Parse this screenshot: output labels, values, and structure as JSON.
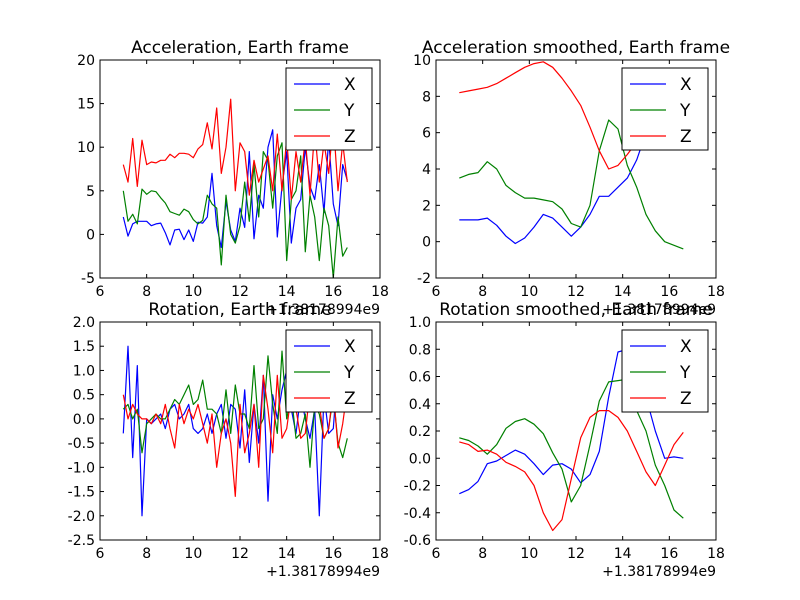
{
  "colors": {
    "X": "#0000ff",
    "Y": "#008000",
    "Z": "#ff0000"
  },
  "chart_data": [
    {
      "type": "line",
      "title": "Acceleration, Earth frame",
      "xlabel": "",
      "ylabel": "",
      "x_offset_label": "+1.38178994e9",
      "xlim": [
        6,
        18
      ],
      "ylim": [
        -5,
        20
      ],
      "xticks": [
        6,
        8,
        10,
        12,
        14,
        16,
        18
      ],
      "yticks": [
        -5,
        0,
        5,
        10,
        15,
        20
      ],
      "legend": "top-right",
      "grid": false,
      "x": [
        7.0,
        7.2,
        7.4,
        7.6,
        7.8,
        8.0,
        8.2,
        8.4,
        8.6,
        8.8,
        9.0,
        9.2,
        9.4,
        9.6,
        9.8,
        10.0,
        10.2,
        10.4,
        10.6,
        10.8,
        11.0,
        11.2,
        11.4,
        11.6,
        11.8,
        12.0,
        12.2,
        12.4,
        12.6,
        12.8,
        13.0,
        13.2,
        13.4,
        13.6,
        13.8,
        14.0,
        14.2,
        14.4,
        14.6,
        14.8,
        15.0,
        15.2,
        15.4,
        15.6,
        15.8,
        16.0,
        16.2,
        16.4,
        16.6
      ],
      "series": [
        {
          "name": "X",
          "values": [
            2.0,
            -0.2,
            1.2,
            1.5,
            1.5,
            1.5,
            1.0,
            1.2,
            1.3,
            0.2,
            -1.2,
            0.5,
            0.6,
            -0.6,
            0.5,
            -0.8,
            1.4,
            1.3,
            2.0,
            7.0,
            1.0,
            -1.5,
            3.8,
            0.5,
            -0.8,
            3.0,
            0.8,
            9.5,
            -0.5,
            4.5,
            3.0,
            10.0,
            12.0,
            -0.3,
            5.5,
            9.5,
            -1.0,
            3.0,
            4.0,
            10.0,
            5.5,
            4.0,
            8.0,
            2.5,
            11.0,
            3.5,
            1.0,
            8.0,
            6.2
          ]
        },
        {
          "name": "Y",
          "values": [
            5.0,
            1.5,
            2.3,
            1.2,
            5.2,
            4.6,
            5.0,
            4.9,
            4.2,
            3.6,
            2.6,
            2.4,
            2.2,
            2.9,
            2.6,
            1.7,
            1.2,
            1.6,
            4.5,
            3.5,
            3.0,
            -3.5,
            4.5,
            0.0,
            -1.0,
            1.0,
            6.0,
            1.5,
            8.0,
            2.0,
            9.5,
            8.5,
            3.0,
            9.0,
            10.5,
            -3.0,
            4.0,
            5.0,
            9.0,
            -2.0,
            4.5,
            2.0,
            -3.0,
            3.0,
            1.0,
            -5.0,
            2.0,
            -2.5,
            -1.5
          ]
        },
        {
          "name": "Z",
          "values": [
            8.0,
            6.0,
            11.0,
            5.5,
            10.8,
            8.0,
            8.3,
            8.2,
            8.5,
            8.5,
            9.2,
            8.8,
            9.3,
            9.3,
            9.2,
            8.8,
            9.8,
            10.3,
            12.8,
            9.8,
            14.5,
            7.0,
            10.0,
            15.5,
            5.0,
            10.5,
            9.5,
            4.5,
            8.5,
            6.0,
            7.5,
            9.0,
            5.0,
            11.5,
            5.0,
            11.0,
            4.0,
            9.5,
            6.0,
            11.0,
            4.5,
            12.0,
            6.0,
            10.5,
            7.0,
            13.0,
            5.0,
            10.5,
            6.0
          ]
        }
      ]
    },
    {
      "type": "line",
      "title": "Acceleration smoothed, Earth frame",
      "xlabel": "",
      "ylabel": "",
      "x_offset_label": "+1.38178994e9",
      "xlim": [
        6,
        18
      ],
      "ylim": [
        -2,
        10
      ],
      "xticks": [
        6,
        8,
        10,
        12,
        14,
        16,
        18
      ],
      "yticks": [
        -2,
        0,
        2,
        4,
        6,
        8,
        10
      ],
      "legend": "top-right",
      "grid": false,
      "x": [
        7.0,
        7.4,
        7.8,
        8.2,
        8.6,
        9.0,
        9.4,
        9.8,
        10.2,
        10.6,
        11.0,
        11.4,
        11.8,
        12.2,
        12.6,
        13.0,
        13.4,
        13.8,
        14.2,
        14.6,
        15.0,
        15.4,
        15.8,
        16.2,
        16.6
      ],
      "series": [
        {
          "name": "X",
          "values": [
            1.2,
            1.2,
            1.2,
            1.3,
            0.9,
            0.3,
            -0.1,
            0.2,
            0.8,
            1.5,
            1.3,
            0.8,
            0.3,
            0.8,
            1.5,
            2.5,
            2.5,
            3.0,
            3.5,
            4.5,
            6.0,
            7.5,
            8.0,
            8.5,
            8.8
          ]
        },
        {
          "name": "Y",
          "values": [
            3.5,
            3.7,
            3.8,
            4.4,
            4.0,
            3.1,
            2.7,
            2.4,
            2.4,
            2.3,
            2.2,
            1.8,
            1.0,
            0.8,
            2.0,
            5.0,
            6.7,
            6.2,
            4.2,
            3.0,
            1.5,
            0.6,
            0.0,
            -0.2,
            -0.4
          ]
        },
        {
          "name": "Z",
          "values": [
            8.2,
            8.3,
            8.4,
            8.5,
            8.7,
            9.0,
            9.3,
            9.6,
            9.8,
            9.9,
            9.6,
            9.0,
            8.3,
            7.5,
            6.3,
            5.0,
            4.0,
            4.2,
            4.8,
            5.5,
            6.0,
            6.5,
            6.8,
            7.0,
            7.0
          ]
        }
      ]
    },
    {
      "type": "line",
      "title": "Rotation, Earth frame",
      "xlabel": "",
      "ylabel": "",
      "x_offset_label": "+1.38178994e9",
      "xlim": [
        6,
        18
      ],
      "ylim": [
        -2.5,
        2.0
      ],
      "xticks": [
        6,
        8,
        10,
        12,
        14,
        16,
        18
      ],
      "yticks": [
        -2.5,
        -2.0,
        -1.5,
        -1.0,
        -0.5,
        0.0,
        0.5,
        1.0,
        1.5,
        2.0
      ],
      "legend": "top-right",
      "grid": false,
      "x": [
        7.0,
        7.2,
        7.4,
        7.6,
        7.8,
        8.0,
        8.2,
        8.4,
        8.6,
        8.8,
        9.0,
        9.2,
        9.4,
        9.6,
        9.8,
        10.0,
        10.2,
        10.4,
        10.6,
        10.8,
        11.0,
        11.2,
        11.4,
        11.6,
        11.8,
        12.0,
        12.2,
        12.4,
        12.6,
        12.8,
        13.0,
        13.2,
        13.4,
        13.6,
        13.8,
        14.0,
        14.2,
        14.4,
        14.6,
        14.8,
        15.0,
        15.2,
        15.4,
        15.6,
        15.8,
        16.0,
        16.2,
        16.4,
        16.6
      ],
      "series": [
        {
          "name": "X",
          "values": [
            -0.3,
            1.5,
            -0.8,
            1.1,
            -2.0,
            0.0,
            -0.1,
            0.0,
            0.1,
            -0.2,
            0.2,
            0.3,
            0.0,
            0.1,
            0.3,
            -0.2,
            -0.3,
            -0.2,
            0.1,
            -0.3,
            0.1,
            0.3,
            -0.4,
            0.3,
            0.2,
            -0.6,
            0.6,
            -0.9,
            0.3,
            -0.5,
            0.9,
            -1.7,
            0.5,
            0.0,
            0.6,
            1.0,
            0.2,
            -0.3,
            0.5,
            0.0,
            -0.4,
            0.2,
            -2.0,
            0.5,
            -0.3,
            -0.2,
            1.1,
            0.3,
            0.8
          ]
        },
        {
          "name": "Y",
          "values": [
            0.2,
            0.3,
            0.0,
            0.2,
            -0.7,
            -0.1,
            0.0,
            0.1,
            0.0,
            0.0,
            0.2,
            0.4,
            0.3,
            0.5,
            0.7,
            0.3,
            0.4,
            0.8,
            0.2,
            0.2,
            0.1,
            -0.3,
            0.6,
            -0.3,
            0.7,
            0.1,
            0.1,
            -0.2,
            1.1,
            -0.2,
            0.0,
            1.3,
            0.3,
            -0.3,
            1.4,
            0.0,
            0.5,
            -0.4,
            -0.3,
            0.1,
            -1.0,
            0.3,
            0.1,
            -0.4,
            -0.2,
            0.5,
            -0.5,
            -0.8,
            -0.4
          ]
        },
        {
          "name": "Z",
          "values": [
            0.5,
            0.0,
            0.3,
            0.1,
            0.0,
            0.0,
            -0.1,
            0.1,
            -0.1,
            0.3,
            -0.2,
            -0.6,
            0.3,
            -0.1,
            0.2,
            0.0,
            0.3,
            -0.1,
            -0.5,
            0.1,
            -1.0,
            -0.3,
            0.0,
            -0.5,
            -1.6,
            0.3,
            -0.7,
            -0.3,
            0.3,
            -1.0,
            0.9,
            0.2,
            -0.7,
            0.9,
            -0.4,
            -0.2,
            0.5,
            0.2,
            -0.4,
            -0.3,
            0.6,
            0.3,
            0.3,
            -0.4,
            -0.2,
            0.6,
            -0.6,
            -0.1,
            0.6
          ]
        }
      ]
    },
    {
      "type": "line",
      "title": "Rotation smoothed, Earth frame",
      "xlabel": "",
      "ylabel": "",
      "x_offset_label": "+1.38178994e9",
      "xlim": [
        6,
        18
      ],
      "ylim": [
        -0.6,
        1.0
      ],
      "xticks": [
        6,
        8,
        10,
        12,
        14,
        16,
        18
      ],
      "yticks": [
        -0.6,
        -0.4,
        -0.2,
        0.0,
        0.2,
        0.4,
        0.6,
        0.8,
        1.0
      ],
      "legend": "top-right",
      "grid": false,
      "x": [
        7.0,
        7.4,
        7.8,
        8.2,
        8.6,
        9.0,
        9.4,
        9.8,
        10.2,
        10.6,
        11.0,
        11.4,
        11.8,
        12.2,
        12.6,
        13.0,
        13.4,
        13.8,
        14.2,
        14.6,
        15.0,
        15.4,
        15.8,
        16.2,
        16.6
      ],
      "series": [
        {
          "name": "X",
          "values": [
            -0.26,
            -0.23,
            -0.17,
            -0.04,
            -0.02,
            0.02,
            0.06,
            0.03,
            -0.04,
            -0.12,
            -0.05,
            -0.04,
            -0.08,
            -0.18,
            -0.12,
            0.05,
            0.45,
            0.78,
            0.8,
            0.62,
            0.45,
            0.2,
            0.0,
            0.01,
            0.0
          ]
        },
        {
          "name": "Y",
          "values": [
            0.15,
            0.13,
            0.09,
            0.03,
            0.1,
            0.22,
            0.27,
            0.29,
            0.25,
            0.18,
            0.04,
            -0.08,
            -0.32,
            -0.2,
            0.1,
            0.42,
            0.56,
            0.57,
            0.58,
            0.35,
            0.2,
            -0.05,
            -0.2,
            -0.38,
            -0.44
          ]
        },
        {
          "name": "Z",
          "values": [
            0.12,
            0.1,
            0.05,
            0.06,
            0.03,
            -0.03,
            -0.06,
            -0.1,
            -0.2,
            -0.4,
            -0.53,
            -0.45,
            -0.15,
            0.15,
            0.3,
            0.35,
            0.35,
            0.3,
            0.2,
            0.05,
            -0.1,
            -0.2,
            -0.05,
            0.1,
            0.19
          ]
        }
      ]
    }
  ]
}
